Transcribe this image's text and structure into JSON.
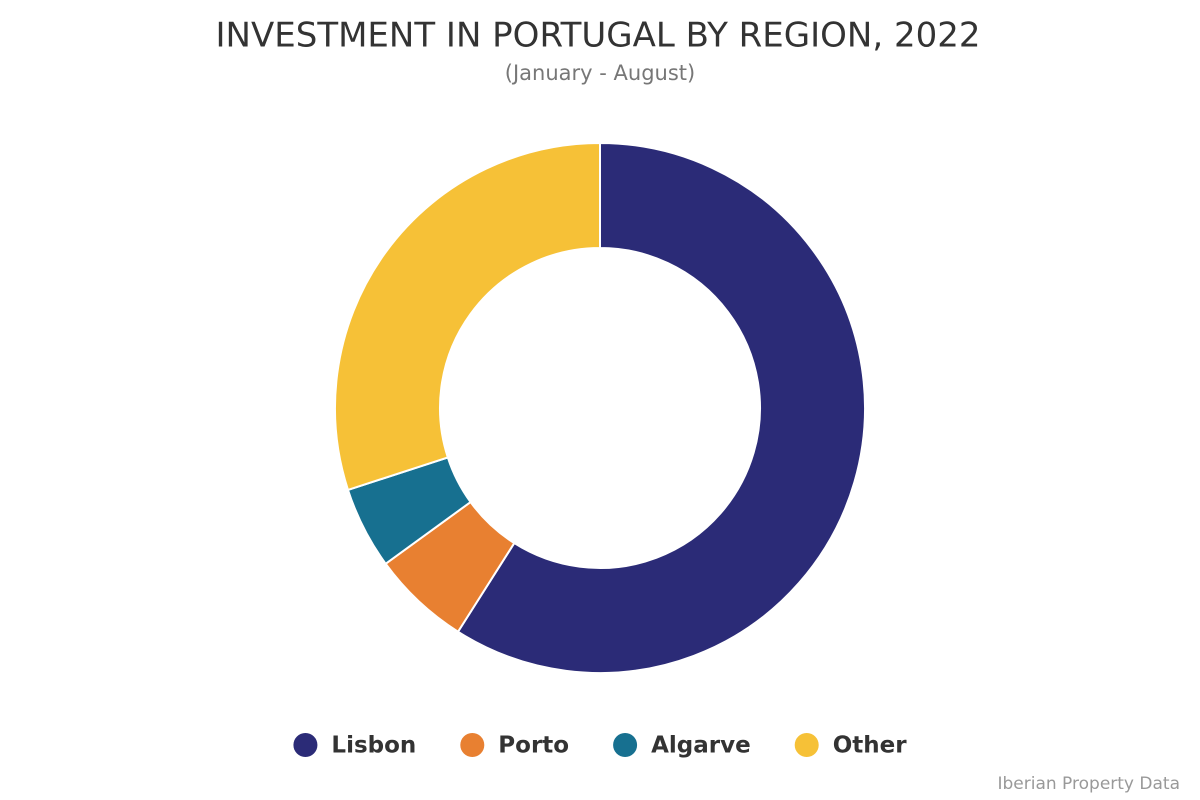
{
  "chart_data": {
    "type": "donut",
    "title": "INVESTMENT IN PORTUGAL BY REGION, 2022",
    "subtitle": "(January - August)",
    "source": "Iberian Property Data",
    "categories": [
      "Lisbon",
      "Porto",
      "Algarve",
      "Other"
    ],
    "values": [
      59,
      6,
      5,
      30
    ],
    "colors": [
      "#2b2b77",
      "#e88031",
      "#177090",
      "#f6c137"
    ],
    "legend": "bottom"
  }
}
